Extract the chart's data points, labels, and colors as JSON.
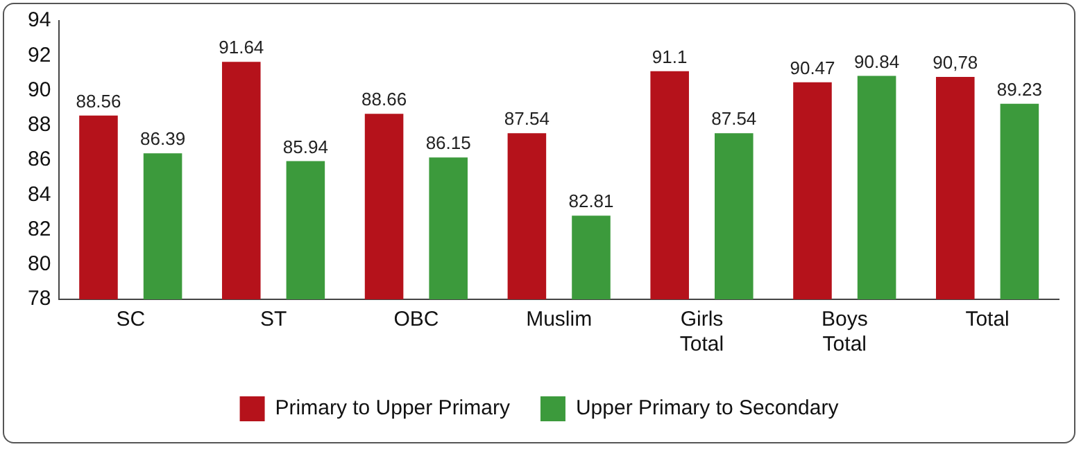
{
  "chart_data": {
    "type": "bar",
    "categories": [
      "SC",
      "ST",
      "OBC",
      "Muslim",
      "Girls Total",
      "Boys Total",
      "Total"
    ],
    "series": [
      {
        "name": "Primary to Upper Primary",
        "color": "#b5121b",
        "values": [
          88.56,
          91.64,
          88.66,
          87.54,
          91.1,
          90.47,
          90.78
        ],
        "value_labels": [
          "88.56",
          "91.64",
          "88.66",
          "87.54",
          "91.1",
          "90.47",
          "90,78"
        ]
      },
      {
        "name": "Upper Primary to Secondary",
        "color": "#3c9a3c",
        "values": [
          86.39,
          85.94,
          86.15,
          82.81,
          87.54,
          90.84,
          89.23
        ],
        "value_labels": [
          "86.39",
          "85.94",
          "86.15",
          "82.81",
          "87.54",
          "90.84",
          "89.23"
        ]
      }
    ],
    "ylim": [
      78,
      94
    ],
    "yticks": [
      78,
      80,
      82,
      84,
      86,
      88,
      90,
      92,
      94
    ],
    "grid": false,
    "legend": "bottom"
  }
}
